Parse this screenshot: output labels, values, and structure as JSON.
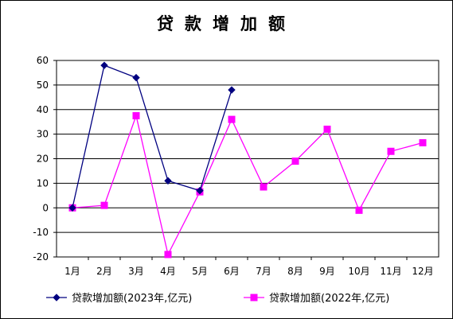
{
  "chart_data": {
    "type": "line",
    "title": "贷款增加额",
    "categories": [
      "1月",
      "2月",
      "3月",
      "4月",
      "5月",
      "6月",
      "7月",
      "8月",
      "9月",
      "10月",
      "11月",
      "12月"
    ],
    "ylim": [
      -20,
      60
    ],
    "yticks": [
      -20,
      -10,
      0,
      10,
      20,
      30,
      40,
      50,
      60
    ],
    "grid": true,
    "legend_position": "bottom",
    "series": [
      {
        "name": "贷款增加额(2023年,亿元)",
        "color": "#000080",
        "marker": "diamond",
        "values": [
          0,
          58,
          53,
          11,
          7,
          48,
          null,
          null,
          null,
          null,
          null,
          null
        ]
      },
      {
        "name": "贷款增加额(2022年,亿元)",
        "color": "#ff00ff",
        "marker": "square",
        "values": [
          0,
          1,
          37.5,
          -19,
          6.5,
          36,
          8.5,
          19,
          32,
          -1,
          23,
          26.5
        ]
      }
    ]
  }
}
